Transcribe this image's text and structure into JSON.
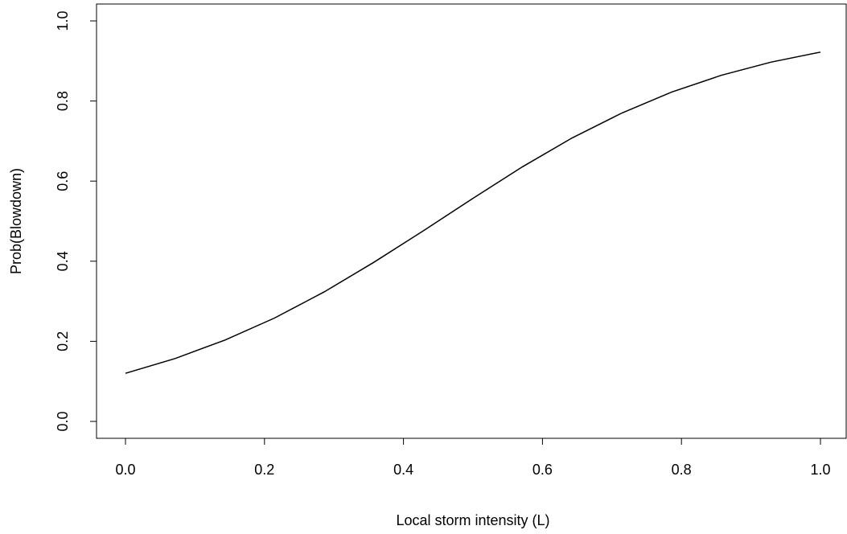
{
  "chart_data": {
    "type": "line",
    "title": "",
    "xlabel": "Local storm intensity (L)",
    "ylabel": "Prob(Blowdown)",
    "xlim": [
      -0.04,
      1.04
    ],
    "ylim": [
      -0.04,
      1.04
    ],
    "x_ticks": [
      0.0,
      0.2,
      0.4,
      0.6,
      0.8,
      1.0
    ],
    "x_tick_labels": [
      "0.0",
      "0.2",
      "0.4",
      "0.6",
      "0.8",
      "1.0"
    ],
    "y_ticks": [
      0.0,
      0.2,
      0.4,
      0.6,
      0.8,
      1.0
    ],
    "y_tick_labels": [
      "0.0",
      "0.2",
      "0.4",
      "0.6",
      "0.8",
      "1.0"
    ],
    "grid": false,
    "color": "#000000",
    "series": [
      {
        "x": [
          0.0,
          0.0714,
          0.1429,
          0.2143,
          0.2857,
          0.3571,
          0.4286,
          0.5,
          0.5714,
          0.6429,
          0.7143,
          0.7857,
          0.8571,
          0.9286,
          1.0
        ],
        "y": [
          0.12,
          0.157,
          0.203,
          0.258,
          0.323,
          0.397,
          0.476,
          0.557,
          0.636,
          0.708,
          0.77,
          0.822,
          0.864,
          0.897,
          0.922
        ]
      }
    ]
  }
}
